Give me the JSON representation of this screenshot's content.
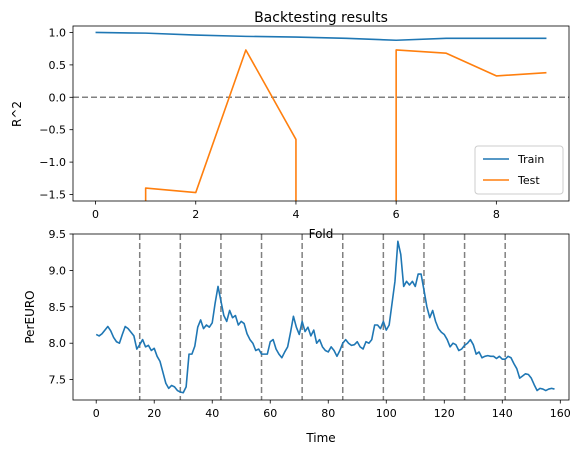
{
  "chart_data": [
    {
      "type": "line",
      "title": "Backtesting results",
      "xlabel": "Fold",
      "ylabel": "R^2",
      "xlim": [
        -0.45,
        9.45
      ],
      "ylim": [
        -1.6,
        1.1
      ],
      "xticks": [
        "0",
        "2",
        "4",
        "6",
        "8"
      ],
      "xtick_values": [
        0,
        2,
        4,
        6,
        8
      ],
      "yticks": [
        "1.0",
        "0.5",
        "0.0",
        "−0.5",
        "−1.0",
        "−1.5"
      ],
      "ytick_values": [
        1.0,
        0.5,
        0.0,
        -0.5,
        -1.0,
        -1.5
      ],
      "reference_line": {
        "y": 0.0,
        "style": "dashed",
        "color": "#808080"
      },
      "legend_position": "lower-right",
      "series": [
        {
          "name": "Train",
          "color": "#1f77b4",
          "x": [
            0,
            1,
            2,
            3,
            4,
            5,
            6,
            7,
            8,
            9
          ],
          "values": [
            1.0,
            0.99,
            0.96,
            0.94,
            0.93,
            0.91,
            0.88,
            0.91,
            0.91,
            0.91
          ]
        },
        {
          "name": "Test",
          "color": "#ff7f0e",
          "x": [
            1,
            1,
            2,
            3,
            4,
            4,
            6,
            6,
            7,
            8,
            9
          ],
          "values": [
            -2.2,
            -1.4,
            -1.47,
            0.73,
            -0.65,
            -2.2,
            -2.2,
            0.73,
            0.68,
            0.33,
            0.38
          ]
        }
      ],
      "legend": [
        "Train",
        "Test"
      ]
    },
    {
      "type": "line",
      "title": "",
      "xlabel": "Time",
      "ylabel": "PerEURO",
      "xlim": [
        -8,
        163
      ],
      "ylim": [
        7.22,
        9.5
      ],
      "xticks": [
        "0",
        "20",
        "40",
        "60",
        "80",
        "100",
        "120",
        "140",
        "160"
      ],
      "xtick_values": [
        0,
        20,
        40,
        60,
        80,
        100,
        120,
        140,
        160
      ],
      "yticks": [
        "9.5",
        "9.0",
        "8.5",
        "8.0",
        "7.5"
      ],
      "ytick_values": [
        9.5,
        9.0,
        8.5,
        8.0,
        7.5
      ],
      "vertical_lines": {
        "x": [
          15,
          29,
          43,
          57,
          71,
          85,
          99,
          113,
          127,
          141
        ],
        "style": "dashed",
        "color": "#808080"
      },
      "series": [
        {
          "color": "#1f77b4",
          "values": [
            8.12,
            8.1,
            8.13,
            8.18,
            8.23,
            8.17,
            8.08,
            8.02,
            8.0,
            8.12,
            8.23,
            8.2,
            8.15,
            8.1,
            7.92,
            7.98,
            8.05,
            7.95,
            7.97,
            7.9,
            7.93,
            7.82,
            7.75,
            7.6,
            7.45,
            7.38,
            7.42,
            7.4,
            7.35,
            7.33,
            7.32,
            7.4,
            7.85,
            7.85,
            7.96,
            8.22,
            8.32,
            8.2,
            8.25,
            8.22,
            8.28,
            8.55,
            8.78,
            8.58,
            8.38,
            8.3,
            8.45,
            8.35,
            8.38,
            8.25,
            8.3,
            8.27,
            8.13,
            8.05,
            8.0,
            7.9,
            7.92,
            7.85,
            7.85,
            7.85,
            8.02,
            8.05,
            7.92,
            7.85,
            7.8,
            7.88,
            7.95,
            8.15,
            8.37,
            8.22,
            8.12,
            8.3,
            8.16,
            8.22,
            8.1,
            8.18,
            8.0,
            8.05,
            7.95,
            7.9,
            7.88,
            7.95,
            7.9,
            7.82,
            7.9,
            8.0,
            8.05,
            8.0,
            7.97,
            7.98,
            8.02,
            7.95,
            7.92,
            8.02,
            8.0,
            8.05,
            8.25,
            8.25,
            8.2,
            8.3,
            8.18,
            8.25,
            8.55,
            8.85,
            9.4,
            9.22,
            8.78,
            8.85,
            8.8,
            8.85,
            8.78,
            8.95,
            8.95,
            8.73,
            8.5,
            8.35,
            8.45,
            8.3,
            8.2,
            8.15,
            8.12,
            8.05,
            7.95,
            8.0,
            7.98,
            7.9,
            7.92,
            7.97,
            8.0,
            8.05,
            7.98,
            7.85,
            7.88,
            7.8,
            7.82,
            7.83,
            7.82,
            7.82,
            7.79,
            7.82,
            7.78,
            7.78,
            7.82,
            7.8,
            7.72,
            7.65,
            7.52,
            7.55,
            7.58,
            7.57,
            7.52,
            7.43,
            7.35,
            7.38,
            7.37,
            7.35,
            7.37,
            7.38,
            7.37
          ]
        }
      ]
    }
  ]
}
